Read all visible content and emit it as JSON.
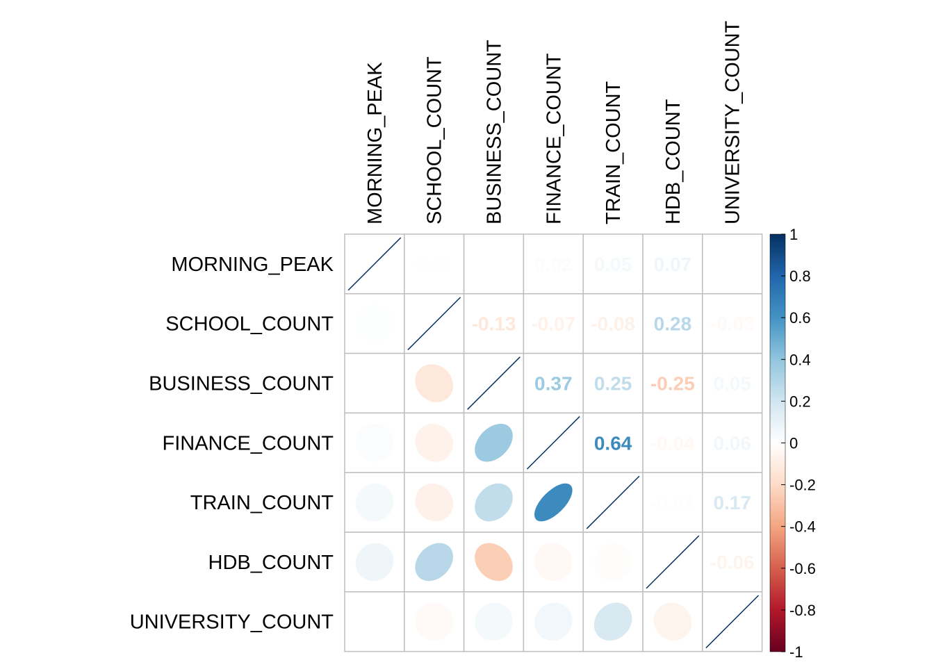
{
  "chart_data": {
    "type": "heatmap",
    "variables": [
      "MORNING_PEAK",
      "SCHOOL_COUNT",
      "BUSINESS_COUNT",
      "FINANCE_COUNT",
      "TRAIN_COUNT",
      "HDB_COUNT",
      "UNIVERSITY_COUNT"
    ],
    "matrix": [
      [
        1.0,
        0.01,
        0.0,
        0.02,
        0.05,
        0.07,
        0.0
      ],
      [
        0.01,
        1.0,
        -0.13,
        -0.07,
        -0.08,
        0.28,
        -0.03
      ],
      [
        0.0,
        -0.13,
        1.0,
        0.37,
        0.25,
        -0.25,
        0.05
      ],
      [
        0.02,
        -0.07,
        0.37,
        1.0,
        0.64,
        -0.04,
        0.06
      ],
      [
        0.05,
        -0.08,
        0.25,
        0.64,
        1.0,
        -0.01,
        0.17
      ],
      [
        0.07,
        0.28,
        -0.25,
        -0.04,
        -0.01,
        1.0,
        -0.06
      ],
      [
        0.0,
        -0.03,
        0.05,
        0.06,
        0.17,
        -0.06,
        1.0
      ]
    ],
    "upper_labels": [
      {
        "row": 0,
        "col": 1,
        "text": "0.01"
      },
      {
        "row": 0,
        "col": 2,
        "text": "0"
      },
      {
        "row": 0,
        "col": 3,
        "text": "0.02"
      },
      {
        "row": 0,
        "col": 4,
        "text": "0.05"
      },
      {
        "row": 0,
        "col": 5,
        "text": "0.07"
      },
      {
        "row": 0,
        "col": 6,
        "text": "0"
      },
      {
        "row": 1,
        "col": 2,
        "text": "-0.13"
      },
      {
        "row": 1,
        "col": 3,
        "text": "-0.07"
      },
      {
        "row": 1,
        "col": 4,
        "text": "-0.08"
      },
      {
        "row": 1,
        "col": 5,
        "text": "0.28"
      },
      {
        "row": 1,
        "col": 6,
        "text": "-0.03"
      },
      {
        "row": 2,
        "col": 3,
        "text": "0.37"
      },
      {
        "row": 2,
        "col": 4,
        "text": "0.25"
      },
      {
        "row": 2,
        "col": 5,
        "text": "-0.25"
      },
      {
        "row": 2,
        "col": 6,
        "text": "0.05"
      },
      {
        "row": 3,
        "col": 4,
        "text": "0.64"
      },
      {
        "row": 3,
        "col": 5,
        "text": "-0.04"
      },
      {
        "row": 3,
        "col": 6,
        "text": "0.06"
      },
      {
        "row": 4,
        "col": 5,
        "text": "-0.01"
      },
      {
        "row": 4,
        "col": 6,
        "text": "0.17"
      },
      {
        "row": 5,
        "col": 6,
        "text": "-0.06"
      }
    ],
    "lower_glyph": "ellipse",
    "upper_glyph": "number",
    "color_scale": {
      "range": [
        -1,
        1
      ],
      "ticks": [
        "1",
        "0.8",
        "0.6",
        "0.4",
        "0.2",
        "0",
        "-0.2",
        "-0.4",
        "-0.6",
        "-0.8",
        "-1"
      ],
      "stops": [
        "#67001F",
        "#B2182B",
        "#D6604D",
        "#F4A582",
        "#FDDBC7",
        "#FFFFFF",
        "#D1E5F0",
        "#92C5DE",
        "#4393C3",
        "#2166AC",
        "#053061"
      ]
    },
    "grid": true,
    "legend_position": "right"
  }
}
